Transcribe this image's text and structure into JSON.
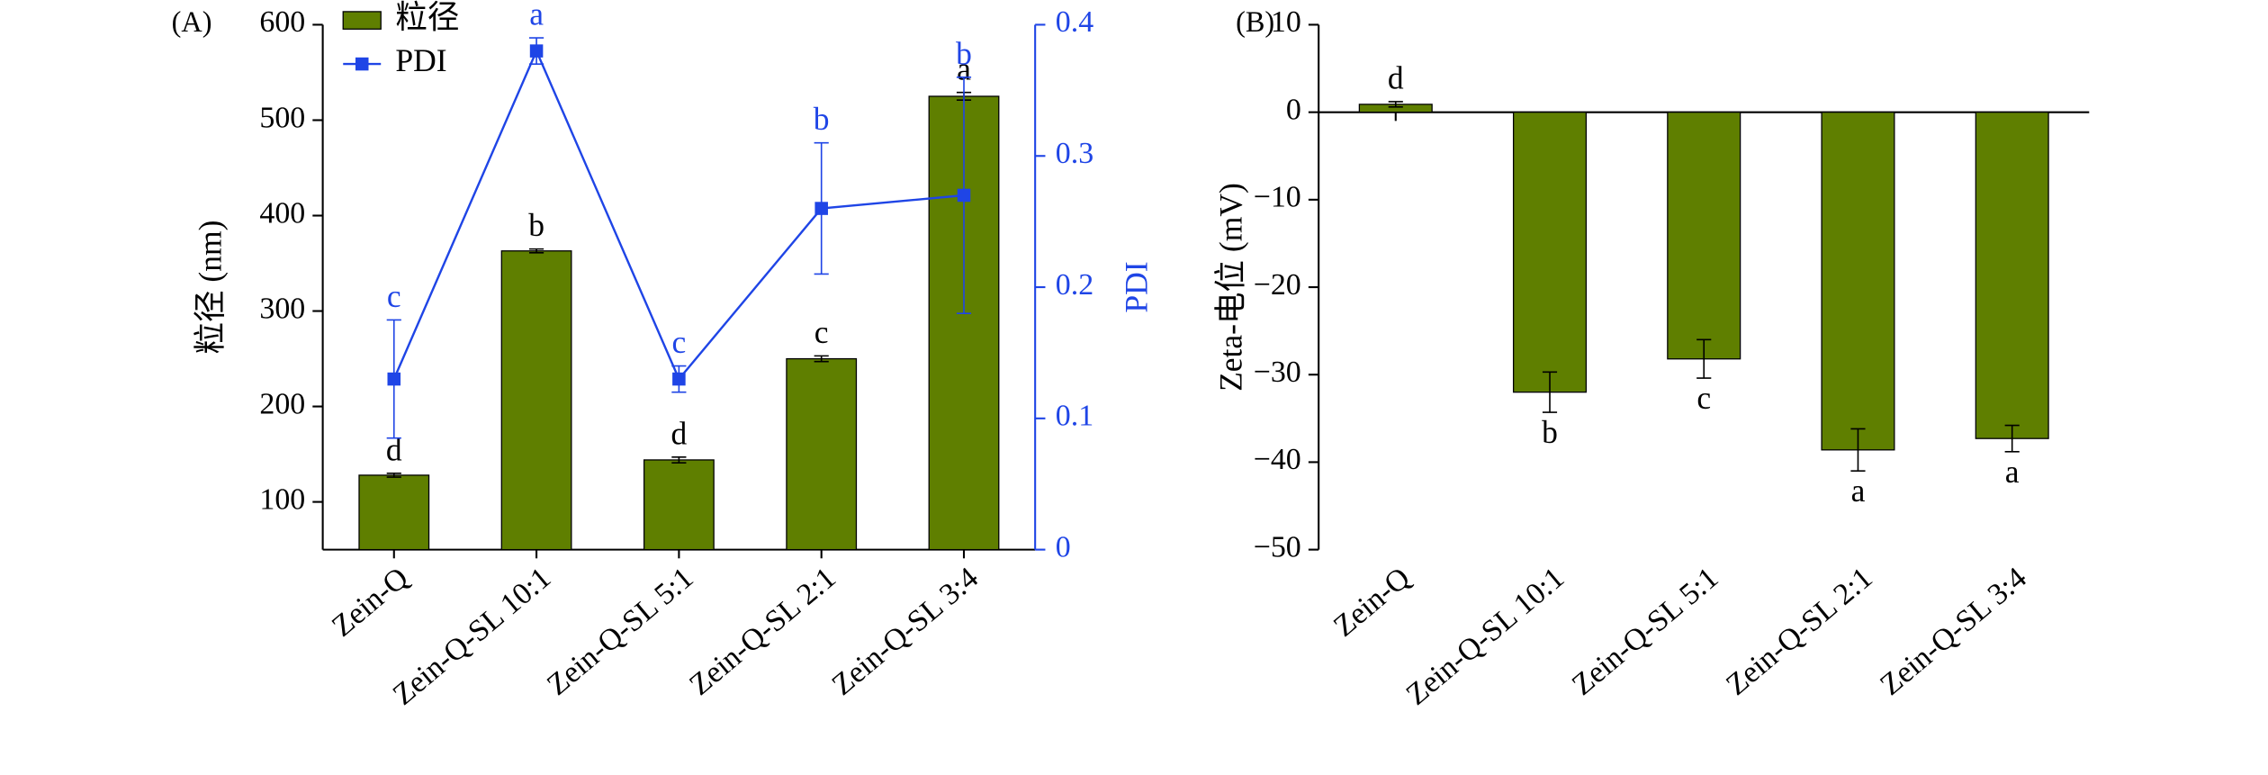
{
  "chart_data": [
    {
      "type": "bar",
      "panel": "(A)",
      "categories": [
        "Zein-Q",
        "Zein-Q-SL 10:1",
        "Zein-Q-SL 5:1",
        "Zein-Q-SL 2:1",
        "Zein-Q-SL 3:4"
      ],
      "ylabel": "粒径 (nm)",
      "y2label": "PDI",
      "ylim": [
        50,
        600
      ],
      "yticks": [
        100,
        200,
        300,
        400,
        500,
        600
      ],
      "y2lim": [
        0,
        0.4
      ],
      "y2ticks": [
        0,
        0.1,
        0.2,
        0.3,
        0.4
      ],
      "legend": "upper left",
      "series": [
        {
          "name": "粒径",
          "color": "#5f7f00",
          "values": [
            128,
            363,
            144,
            250,
            525
          ],
          "errors": [
            2,
            2,
            3,
            3,
            4
          ],
          "letters": [
            "d",
            "b",
            "d",
            "c",
            "a"
          ]
        },
        {
          "name": "PDI",
          "color": "#1f45e6",
          "axis": "y2",
          "values": [
            0.13,
            0.38,
            0.13,
            0.26,
            0.27
          ],
          "errors": [
            0.045,
            0.01,
            0.01,
            0.05,
            0.09
          ],
          "letters": [
            "c",
            "a",
            "c",
            "b",
            "b"
          ]
        }
      ]
    },
    {
      "type": "bar",
      "panel": "(B)",
      "categories": [
        "Zein-Q",
        "Zein-Q-SL 10:1",
        "Zein-Q-SL 5:1",
        "Zein-Q-SL 2:1",
        "Zein-Q-SL 3:4"
      ],
      "ylabel": "Zeta-电位 (mV)",
      "ylim": [
        -50,
        10
      ],
      "yticks": [
        {
          "value": -50,
          "label": "−50"
        },
        {
          "value": -40,
          "label": "−40"
        },
        {
          "value": -30,
          "label": "−30"
        },
        {
          "value": -20,
          "label": "−20"
        },
        {
          "value": -10,
          "label": "−10"
        },
        0,
        10
      ],
      "series": [
        {
          "color": "#5f7f00",
          "values": [
            0.9,
            -32,
            -28.2,
            -38.6,
            -37.3
          ],
          "errors": [
            0.3,
            2.3,
            2.2,
            2.4,
            1.5
          ],
          "letters": [
            "d",
            "b",
            "c",
            "a",
            "a"
          ]
        }
      ]
    }
  ]
}
